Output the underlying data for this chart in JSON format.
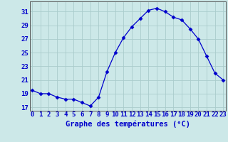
{
  "hours": [
    0,
    1,
    2,
    3,
    4,
    5,
    6,
    7,
    8,
    9,
    10,
    11,
    12,
    13,
    14,
    15,
    16,
    17,
    18,
    19,
    20,
    21,
    22,
    23
  ],
  "temps": [
    19.5,
    19.0,
    19.0,
    18.5,
    18.2,
    18.2,
    17.7,
    17.2,
    18.5,
    22.2,
    25.0,
    27.2,
    28.8,
    30.0,
    31.2,
    31.5,
    31.0,
    30.2,
    29.8,
    28.5,
    27.0,
    24.5,
    22.0,
    21.0
  ],
  "line_color": "#0000cc",
  "marker": "D",
  "marker_size": 2.5,
  "bg_color": "#cce8e8",
  "grid_color": "#aacccc",
  "xlabel": "Graphe des températures (°C)",
  "ylim": [
    16.5,
    32.5
  ],
  "yticks": [
    17,
    19,
    21,
    23,
    25,
    27,
    29,
    31
  ],
  "xlim": [
    -0.3,
    23.3
  ],
  "xticks": [
    0,
    1,
    2,
    3,
    4,
    5,
    6,
    7,
    8,
    9,
    10,
    11,
    12,
    13,
    14,
    15,
    16,
    17,
    18,
    19,
    20,
    21,
    22,
    23
  ],
  "title_color": "#0000cc",
  "axis_color": "#555555",
  "label_fontsize": 6.5,
  "xlabel_fontsize": 7.5
}
